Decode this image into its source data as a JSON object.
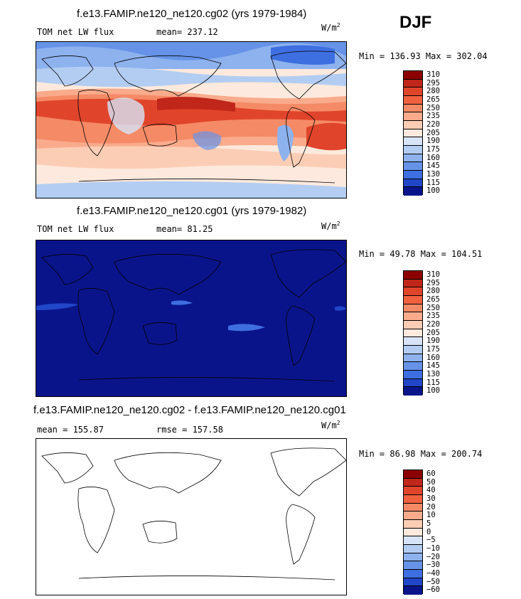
{
  "season": "DJF",
  "unit_base": "W/m",
  "unit_exp": "2",
  "chart_data": [
    {
      "type": "heatmap",
      "title": "f.e13.FAMIP.ne120_ne120.cg02 (yrs 1979-1984)",
      "left_label": "TOM net LW flux",
      "stat_label": "mean= 237.12",
      "unit": "W/m2",
      "min_max": "Min = 136.93 Max = 302.04",
      "min": 136.93,
      "max": 302.04,
      "mean": 237.12,
      "levels": [
        "310",
        "295",
        "280",
        "265",
        "250",
        "235",
        "220",
        "205",
        "190",
        "175",
        "160",
        "145",
        "130",
        "115",
        "100"
      ],
      "colors": [
        "#8b0000",
        "#c0261a",
        "#e0452b",
        "#f0613f",
        "#f58a66",
        "#f9ab8c",
        "#fccdb5",
        "#fde9dd",
        "#d7e4f7",
        "#b3cdf2",
        "#8db2ee",
        "#6693e8",
        "#3e6fe0",
        "#2146c8",
        "#0a148a"
      ]
    },
    {
      "type": "heatmap",
      "title": "f.e13.FAMIP.ne120_ne120.cg01 (yrs 1979-1982)",
      "left_label": "TOM net LW flux",
      "stat_label": "mean=  81.25",
      "unit": "W/m2",
      "min_max": "Min =  49.78 Max = 104.51",
      "min": 49.78,
      "max": 104.51,
      "mean": 81.25,
      "levels": [
        "310",
        "295",
        "280",
        "265",
        "250",
        "235",
        "220",
        "205",
        "190",
        "175",
        "160",
        "145",
        "130",
        "115",
        "100"
      ],
      "colors": [
        "#8b0000",
        "#c0261a",
        "#e0452b",
        "#f0613f",
        "#f58a66",
        "#f9ab8c",
        "#fccdb5",
        "#fde9dd",
        "#d7e4f7",
        "#b3cdf2",
        "#8db2ee",
        "#6693e8",
        "#3e6fe0",
        "#2146c8",
        "#0a148a"
      ]
    },
    {
      "type": "heatmap",
      "title": "f.e13.FAMIP.ne120_ne120.cg02 - f.e13.FAMIP.ne120_ne120.cg01",
      "left_label": "mean = 155.87",
      "stat_label": "rmse = 157.58",
      "unit": "W/m2",
      "min_max": "Min =  86.98 Max = 200.74",
      "min": 86.98,
      "max": 200.74,
      "mean": 155.87,
      "rmse": 157.58,
      "levels": [
        "60",
        "50",
        "40",
        "30",
        "20",
        "10",
        "5",
        "0",
        "−5",
        "−10",
        "−20",
        "−30",
        "−40",
        "−50",
        "−60"
      ],
      "colors": [
        "#8b0000",
        "#c0261a",
        "#e0452b",
        "#f0613f",
        "#f58a66",
        "#f9ab8c",
        "#fccdb5",
        "#fde9dd",
        "#d7e4f7",
        "#b3cdf2",
        "#8db2ee",
        "#6693e8",
        "#3e6fe0",
        "#2146c8",
        "#0a148a"
      ]
    }
  ]
}
